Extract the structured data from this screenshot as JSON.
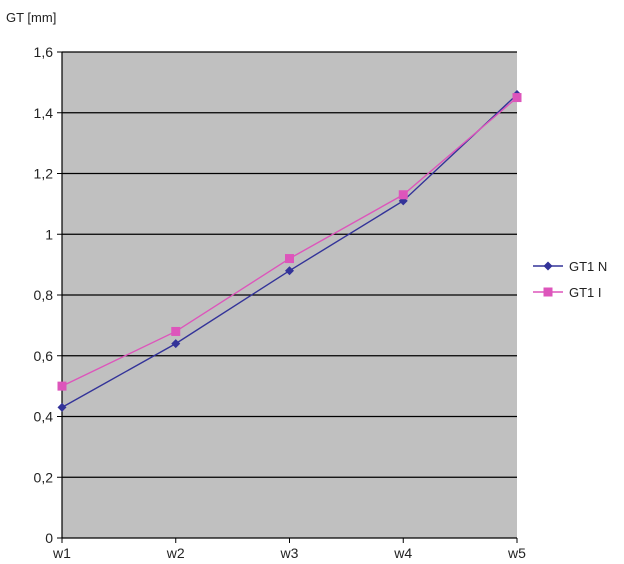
{
  "chart_data": {
    "type": "line",
    "ylabel": "GT [mm]",
    "xlabel": "",
    "categories": [
      "w1",
      "w2",
      "w3",
      "w4",
      "w5"
    ],
    "ylim": [
      0,
      1.6
    ],
    "yticks": [
      0,
      0.2,
      0.4,
      0.6,
      0.8,
      1,
      1.2,
      1.4,
      1.6
    ],
    "ytick_labels": [
      "0",
      "0,2",
      "0,4",
      "0,6",
      "0,8",
      "1",
      "1,2",
      "1,4",
      "1,6"
    ],
    "grid": "horizontal",
    "plot_background": "#c0c0c0",
    "legend_position": "right",
    "series": [
      {
        "name": "GT1 N",
        "values": [
          0.43,
          0.64,
          0.88,
          1.11,
          1.46
        ],
        "color": "#333399",
        "marker": "diamond"
      },
      {
        "name": "GT1 I",
        "values": [
          0.5,
          0.68,
          0.92,
          1.13,
          1.45
        ],
        "color": "#dd55bb",
        "marker": "square"
      }
    ]
  }
}
